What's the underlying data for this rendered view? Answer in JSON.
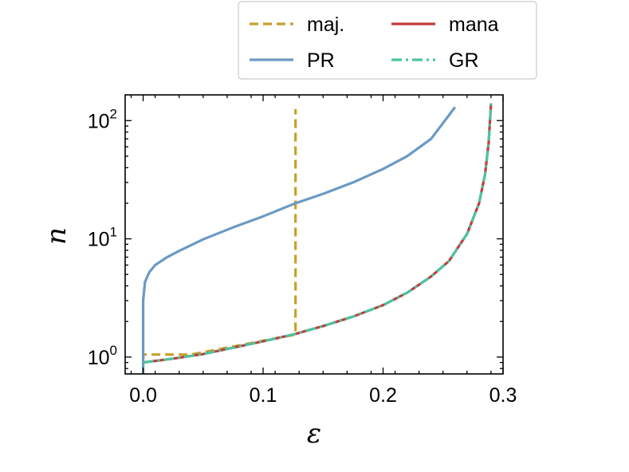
{
  "chart_data": {
    "type": "line",
    "title": "",
    "xlabel": "ε",
    "ylabel": "n",
    "xscale": "linear",
    "yscale": "log",
    "xlim": [
      -0.015,
      0.3
    ],
    "ylim": [
      0.72,
      165
    ],
    "xticks": [
      0.0,
      0.1,
      0.2,
      0.3
    ],
    "xtick_labels": [
      "0.0",
      "0.1",
      "0.2",
      "0.3"
    ],
    "yticks": [
      1,
      10,
      100
    ],
    "ytick_labels": [
      {
        "base": "10",
        "exp": "0"
      },
      {
        "base": "10",
        "exp": "1"
      },
      {
        "base": "10",
        "exp": "2"
      }
    ],
    "grid": false,
    "legend_position": "upper-right, above plot",
    "series": [
      {
        "name": "maj.",
        "color": "#c8a02a",
        "style": "dashed",
        "x": [
          0.0,
          0.0,
          0.04,
          0.127,
          0.127
        ],
        "y": [
          0.95,
          1.05,
          1.05,
          1.55,
          125
        ]
      },
      {
        "name": "PR",
        "color": "#6a9ac4",
        "style": "solid",
        "x": [
          0.0,
          0.0,
          0.0015,
          0.005,
          0.01,
          0.02,
          0.03,
          0.05,
          0.075,
          0.1,
          0.127,
          0.15,
          0.175,
          0.2,
          0.22,
          0.24,
          0.26
        ],
        "y": [
          0.72,
          3.0,
          4.3,
          5.2,
          6.0,
          7.0,
          7.9,
          9.9,
          12.5,
          15.5,
          20.0,
          24.0,
          30.0,
          39.0,
          50.0,
          70.0,
          130.0
        ]
      },
      {
        "name": "mana",
        "color": "#c43c3c",
        "style": "solid",
        "x": [
          0.0,
          0.025,
          0.05,
          0.075,
          0.1,
          0.125,
          0.15,
          0.175,
          0.2,
          0.22,
          0.24,
          0.255,
          0.27,
          0.28,
          0.285,
          0.288,
          0.29
        ],
        "y": [
          0.9,
          0.97,
          1.06,
          1.2,
          1.36,
          1.55,
          1.83,
          2.2,
          2.75,
          3.5,
          4.8,
          6.5,
          11.0,
          20.0,
          35.0,
          65.0,
          140.0
        ]
      },
      {
        "name": "GR",
        "color": "#4cc4a0",
        "style": "dashdot",
        "x": [
          0.0,
          0.025,
          0.05,
          0.075,
          0.1,
          0.125,
          0.15,
          0.175,
          0.2,
          0.22,
          0.24,
          0.255,
          0.27,
          0.28,
          0.285,
          0.288,
          0.29
        ],
        "y": [
          0.9,
          0.97,
          1.06,
          1.2,
          1.36,
          1.55,
          1.83,
          2.2,
          2.75,
          3.5,
          4.8,
          6.5,
          11.0,
          20.0,
          35.0,
          65.0,
          140.0
        ]
      }
    ]
  }
}
